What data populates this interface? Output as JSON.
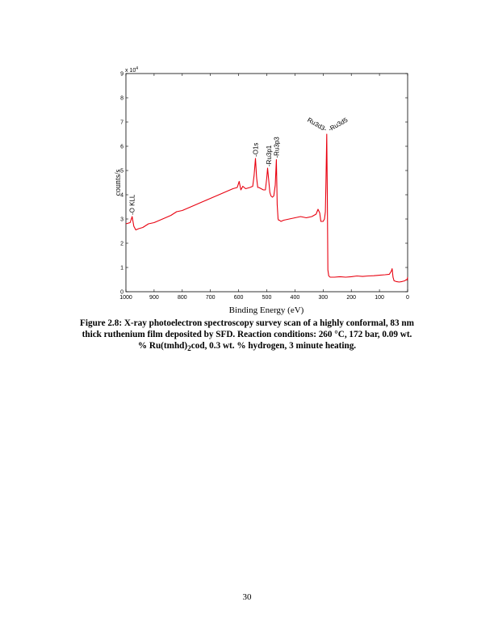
{
  "figure": {
    "caption_parts": [
      "Figure 2.8: X-ray photoelectron spectroscopy survey scan of a highly conformal, 83 nm thick ruthenium film deposited by SFD.  Reaction conditions: 260 °C, 172 bar, 0.09 wt. % Ru(tmhd)",
      "2",
      "cod, 0.3 wt. % hydrogen, 3 minute heating."
    ]
  },
  "page_number": "30",
  "chart_data": {
    "type": "line",
    "title": "",
    "xlabel": "Binding Energy (eV)",
    "ylabel": "counts/s",
    "y_multiplier_label": "x 10",
    "y_multiplier_exp": "4",
    "xlim": [
      1000,
      0
    ],
    "ylim": [
      0,
      9
    ],
    "x_reversed": true,
    "x_ticks": [
      1000,
      900,
      800,
      700,
      600,
      500,
      400,
      300,
      200,
      100,
      0
    ],
    "y_ticks": [
      0,
      1,
      2,
      3,
      4,
      5,
      6,
      7,
      8,
      9
    ],
    "grid": false,
    "line_color": "#e8000f",
    "series": [
      {
        "x": [
          1000,
          985,
          978,
          972,
          965,
          955,
          940,
          920,
          900,
          880,
          860,
          840,
          820,
          800,
          780,
          760,
          740,
          720,
          700,
          680,
          660,
          640,
          620,
          605,
          598,
          592,
          585,
          575,
          560,
          550,
          545,
          540,
          536,
          532,
          528,
          520,
          512,
          505,
          500,
          497,
          493,
          489,
          485,
          480,
          475,
          470,
          466,
          463,
          460,
          458,
          455,
          450,
          440,
          420,
          400,
          380,
          360,
          340,
          325,
          318,
          312,
          308,
          300,
          295,
          292,
          290,
          287,
          285,
          283,
          280,
          275,
          270,
          260,
          240,
          220,
          200,
          180,
          160,
          140,
          120,
          100,
          80,
          65,
          58,
          55,
          52,
          48,
          40,
          30,
          20,
          10,
          5,
          2,
          0
        ],
        "y": [
          2.8,
          2.85,
          3.1,
          2.7,
          2.55,
          2.6,
          2.65,
          2.8,
          2.85,
          2.95,
          3.05,
          3.15,
          3.3,
          3.35,
          3.45,
          3.55,
          3.65,
          3.75,
          3.85,
          3.95,
          4.05,
          4.15,
          4.25,
          4.3,
          4.55,
          4.2,
          4.35,
          4.25,
          4.3,
          4.35,
          4.8,
          5.5,
          4.7,
          4.3,
          4.3,
          4.25,
          4.2,
          4.2,
          4.7,
          5.1,
          4.6,
          4.1,
          3.95,
          3.9,
          3.95,
          4.4,
          5.45,
          3.6,
          3.0,
          2.95,
          2.95,
          2.9,
          2.95,
          3.0,
          3.05,
          3.1,
          3.05,
          3.1,
          3.2,
          3.4,
          3.25,
          2.9,
          2.9,
          3.0,
          3.3,
          4.5,
          6.5,
          4.0,
          0.9,
          0.65,
          0.6,
          0.6,
          0.6,
          0.62,
          0.6,
          0.62,
          0.65,
          0.63,
          0.65,
          0.66,
          0.68,
          0.7,
          0.72,
          0.85,
          0.95,
          0.6,
          0.45,
          0.42,
          0.4,
          0.42,
          0.45,
          0.5,
          0.48,
          0.6
        ]
      }
    ],
    "annotations": [
      {
        "label": "-O KLL",
        "x": 978,
        "y": 3.1
      },
      {
        "label": "-O1s",
        "x": 540,
        "y": 5.5
      },
      {
        "label": "-Ru3p1",
        "x": 493,
        "y": 5.1
      },
      {
        "label": "-Ru3p3",
        "x": 466,
        "y": 5.45
      },
      {
        "label": "Ru3d3-",
        "x": 287,
        "y": 6.5
      },
      {
        "label": "-Ru3d5",
        "x": 282,
        "y": 6.5
      }
    ]
  }
}
